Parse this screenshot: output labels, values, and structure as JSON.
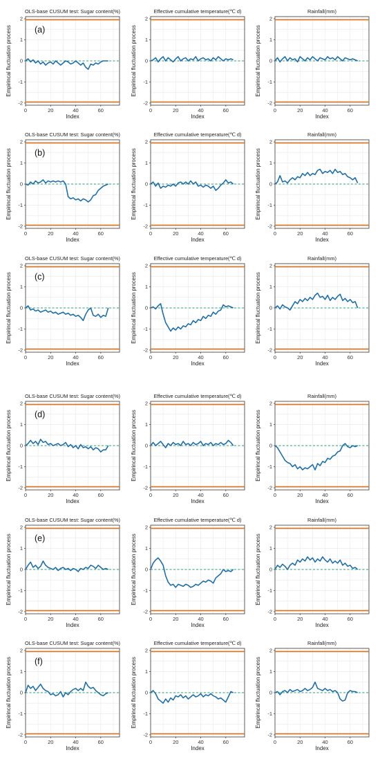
{
  "figure": {
    "ylabel": "Empirincal fluctuation process",
    "xlabel": "Index",
    "colors": {
      "series": "#1f6fa6",
      "boundary": "#d9731b",
      "zero_line": "#2a9d7a",
      "grid": "#ececec",
      "frame": "#333333"
    }
  },
  "chart_data": [
    {
      "panel": "a",
      "type": "line",
      "title": "OLS-base CUSUM test: Sugar content(%)",
      "xlabel": "Index",
      "ylabel": "Empirincal fluctuation process",
      "xlim": [
        0,
        75
      ],
      "ylim": [
        -2.1,
        2.1
      ],
      "yticks": [
        -2,
        -1,
        0,
        1,
        2
      ],
      "xticks": [
        0,
        20,
        40,
        60
      ],
      "boundaries": [
        1.95,
        -1.95
      ],
      "label": "(a)",
      "x_step": 2,
      "values": [
        0,
        0.1,
        -0.05,
        0.05,
        -0.1,
        0,
        -0.15,
        -0.05,
        -0.2,
        -0.1,
        -0.05,
        -0.15,
        0,
        -0.1,
        -0.2,
        -0.1,
        0,
        -0.05,
        -0.15,
        -0.1,
        0,
        -0.1,
        -0.2,
        -0.1,
        -0.3,
        -0.4,
        -0.15,
        -0.2,
        -0.1,
        -0.15,
        -0.05,
        0,
        0,
        0
      ]
    },
    {
      "panel": "a2",
      "type": "line",
      "title": "Effective cumulative temperature(℃ d)",
      "xlabel": "Index",
      "ylabel": "Empirincal fluctuation process",
      "xlim": [
        0,
        75
      ],
      "ylim": [
        -2.1,
        2.1
      ],
      "yticks": [
        -2,
        -1,
        0,
        1,
        2
      ],
      "xticks": [
        0,
        20,
        40,
        60
      ],
      "boundaries": [
        1.95,
        -1.95
      ],
      "x_step": 2,
      "values": [
        0,
        0.05,
        0.15,
        -0.05,
        0.1,
        0.2,
        0,
        0.15,
        0.05,
        -0.05,
        0.1,
        0.2,
        0,
        0.1,
        0.15,
        0,
        0.1,
        0.05,
        0.2,
        0,
        0.1,
        0.15,
        0.05,
        0.1,
        0,
        0.15,
        0.05,
        0.2,
        0.1,
        0,
        0.1,
        0.05,
        0.1,
        0.05
      ]
    },
    {
      "panel": "a3",
      "type": "line",
      "title": "Rainfall(mm)",
      "xlabel": "Index",
      "ylabel": "Empirincal fluctuation process",
      "xlim": [
        0,
        75
      ],
      "ylim": [
        -2.1,
        2.1
      ],
      "yticks": [
        -2,
        -1,
        0,
        1,
        2
      ],
      "xticks": [
        0,
        20,
        40,
        60
      ],
      "boundaries": [
        1.95,
        -1.95
      ],
      "x_step": 2,
      "values": [
        0,
        0.15,
        -0.05,
        0.1,
        0.2,
        0,
        0.15,
        0.05,
        0.1,
        -0.05,
        0.2,
        0.1,
        0,
        0.15,
        0.05,
        0.2,
        0.1,
        0,
        0.15,
        0.1,
        0.05,
        0.2,
        0.1,
        0.15,
        0.05,
        0.2,
        0.1,
        0,
        0.15,
        0.1,
        0.05,
        0.1,
        0.05,
        0
      ]
    },
    {
      "panel": "b",
      "type": "line",
      "title": "OLS-base CUSUM test: Sugar content(%)",
      "xlabel": "Index",
      "ylabel": "Empirincal fluctuation process",
      "xlim": [
        0,
        75
      ],
      "ylim": [
        -2.1,
        2.1
      ],
      "yticks": [
        -2,
        -1,
        0,
        1,
        2
      ],
      "xticks": [
        0,
        20,
        40,
        60
      ],
      "boundaries": [
        1.95,
        -1.95
      ],
      "label": "(b)",
      "x_step": 2,
      "values": [
        0,
        -0.05,
        0.1,
        0,
        0.15,
        0.05,
        0.1,
        0.2,
        0.05,
        0.15,
        0.1,
        0.15,
        0.1,
        0.15,
        0.1,
        0.15,
        0,
        -0.6,
        -0.7,
        -0.65,
        -0.75,
        -0.7,
        -0.8,
        -0.7,
        -0.75,
        -0.85,
        -0.75,
        -0.55,
        -0.5,
        -0.3,
        -0.2,
        -0.1,
        -0.05,
        0
      ]
    },
    {
      "panel": "b2",
      "type": "line",
      "title": "Effective cumulative temperature(℃ d)",
      "xlabel": "Index",
      "ylabel": "Empirincal fluctuation process",
      "xlim": [
        0,
        75
      ],
      "ylim": [
        -2.1,
        2.1
      ],
      "yticks": [
        -2,
        -1,
        0,
        1,
        2
      ],
      "xticks": [
        0,
        20,
        40,
        60
      ],
      "boundaries": [
        1.95,
        -1.95
      ],
      "x_step": 2,
      "values": [
        0,
        0.1,
        -0.1,
        0.05,
        -0.2,
        -0.1,
        -0.15,
        -0.05,
        -0.1,
        0,
        -0.1,
        0.05,
        0.1,
        0,
        0.1,
        0,
        0.15,
        0,
        0.1,
        -0.1,
        -0.05,
        -0.15,
        -0.05,
        -0.1,
        -0.2,
        -0.1,
        -0.3,
        -0.2,
        -0.05,
        0.05,
        0.2,
        0.05,
        0.1,
        0
      ]
    },
    {
      "panel": "b3",
      "type": "line",
      "title": "Rainfall(mm)",
      "xlabel": "Index",
      "ylabel": "Empirincal fluctuation process",
      "xlim": [
        0,
        75
      ],
      "ylim": [
        -2.1,
        2.1
      ],
      "yticks": [
        -2,
        -1,
        0,
        1,
        2
      ],
      "xticks": [
        0,
        20,
        40,
        60
      ],
      "boundaries": [
        1.95,
        -1.95
      ],
      "x_step": 2,
      "values": [
        0,
        0.1,
        0.4,
        0.1,
        0.15,
        0.05,
        0.2,
        0.3,
        0.2,
        0.35,
        0.3,
        0.5,
        0.4,
        0.55,
        0.4,
        0.5,
        0.45,
        0.65,
        0.7,
        0.5,
        0.6,
        0.55,
        0.65,
        0.5,
        0.7,
        0.55,
        0.6,
        0.45,
        0.5,
        0.35,
        0.3,
        0.2,
        0.3,
        0.05
      ]
    },
    {
      "panel": "c",
      "type": "line",
      "title": "OLS-base CUSUM test: Sugar content(%)",
      "xlabel": "Index",
      "ylabel": "Empirincal fluctuation process",
      "xlim": [
        0,
        75
      ],
      "ylim": [
        -2.1,
        2.1
      ],
      "yticks": [
        -2,
        -1,
        0,
        1,
        2
      ],
      "xticks": [
        0,
        20,
        40,
        60
      ],
      "boundaries": [
        1.95,
        -1.95
      ],
      "label": "(c)",
      "x_step": 2,
      "values": [
        0,
        0.1,
        -0.1,
        -0.05,
        -0.15,
        -0.1,
        -0.2,
        -0.15,
        -0.1,
        -0.2,
        -0.15,
        -0.25,
        -0.2,
        -0.3,
        -0.25,
        -0.2,
        -0.3,
        -0.25,
        -0.35,
        -0.3,
        -0.4,
        -0.35,
        -0.45,
        -0.6,
        -0.3,
        -0.1,
        0,
        -0.35,
        -0.4,
        -0.3,
        -0.45,
        -0.35,
        -0.4,
        0
      ]
    },
    {
      "panel": "c2",
      "type": "line",
      "title": "Effective cumulative temperature(℃ d)",
      "xlabel": "Index",
      "ylabel": "Empirincal fluctuation process",
      "xlim": [
        0,
        75
      ],
      "ylim": [
        -2.1,
        2.1
      ],
      "yticks": [
        -2,
        -1,
        0,
        1,
        2
      ],
      "xticks": [
        0,
        20,
        40,
        60
      ],
      "boundaries": [
        1.95,
        -1.95
      ],
      "x_step": 2,
      "values": [
        0,
        0.05,
        -0.05,
        0.1,
        0.2,
        -0.3,
        -0.7,
        -0.9,
        -1.1,
        -0.95,
        -1.05,
        -0.9,
        -1.0,
        -0.85,
        -0.9,
        -0.75,
        -0.8,
        -0.6,
        -0.7,
        -0.55,
        -0.6,
        -0.4,
        -0.5,
        -0.35,
        -0.4,
        -0.2,
        -0.3,
        -0.15,
        -0.1,
        0.15,
        0.05,
        0.1,
        0.05,
        0
      ]
    },
    {
      "panel": "c3",
      "type": "line",
      "title": "Rainfall(mm)",
      "xlabel": "Index",
      "ylabel": "Empirincal fluctuation process",
      "xlim": [
        0,
        75
      ],
      "ylim": [
        -2.1,
        2.1
      ],
      "yticks": [
        -2,
        -1,
        0,
        1,
        2
      ],
      "xticks": [
        0,
        20,
        40,
        60
      ],
      "boundaries": [
        1.95,
        -1.95
      ],
      "x_step": 2,
      "values": [
        0,
        0.1,
        -0.05,
        0.15,
        0.05,
        0,
        -0.1,
        0.1,
        0.3,
        0.2,
        0.4,
        0.3,
        0.45,
        0.35,
        0.5,
        0.4,
        0.6,
        0.7,
        0.5,
        0.55,
        0.4,
        0.6,
        0.35,
        0.5,
        0.4,
        0.55,
        0.65,
        0.35,
        0.45,
        0.3,
        0.4,
        0.25,
        0.3,
        0
      ]
    },
    {
      "panel": "d",
      "type": "line",
      "title": "OLS-base CUSUM test: Sugar content(%)",
      "xlabel": "Index",
      "ylabel": "Empirincal fluctuation process",
      "xlim": [
        0,
        75
      ],
      "ylim": [
        -2.1,
        2.1
      ],
      "yticks": [
        -2,
        -1,
        0,
        1,
        2
      ],
      "xticks": [
        0,
        20,
        40,
        60
      ],
      "boundaries": [
        1.95,
        -1.95
      ],
      "label": "(d)",
      "x_step": 2,
      "values": [
        0,
        0.1,
        0.25,
        0.1,
        0.2,
        0.05,
        0.3,
        0.15,
        0.2,
        0.05,
        0.1,
        0,
        0.05,
        0.1,
        0,
        0.05,
        0.15,
        -0.05,
        0.05,
        -0.1,
        0,
        -0.15,
        0.05,
        -0.1,
        -0.05,
        -0.15,
        -0.05,
        -0.2,
        -0.1,
        -0.15,
        -0.3,
        -0.2,
        -0.2,
        0
      ]
    },
    {
      "panel": "d2",
      "type": "line",
      "title": "Effective cumulative temperature(℃ d)",
      "xlabel": "Index",
      "ylabel": "Empirincal fluctuation process",
      "xlim": [
        0,
        75
      ],
      "ylim": [
        -2.1,
        2.1
      ],
      "yticks": [
        -2,
        -1,
        0,
        1,
        2
      ],
      "xticks": [
        0,
        20,
        40,
        60
      ],
      "boundaries": [
        1.95,
        -1.95
      ],
      "x_step": 2,
      "values": [
        0,
        0.15,
        0,
        0.1,
        0.2,
        0.05,
        -0.1,
        0.1,
        0,
        0.15,
        0.05,
        0.1,
        0,
        0.2,
        0.05,
        0.1,
        0,
        0.15,
        0.05,
        0.1,
        0.2,
        0,
        0.1,
        0.05,
        0.15,
        0,
        0.1,
        0.05,
        0.15,
        0.05,
        0.1,
        0.25,
        0.15,
        0
      ]
    },
    {
      "panel": "d3",
      "type": "line",
      "title": "Rainfall(mm)",
      "xlabel": "Index",
      "ylabel": "Empirincal fluctuation process",
      "xlim": [
        0,
        75
      ],
      "ylim": [
        -2.1,
        2.1
      ],
      "yticks": [
        -2,
        -1,
        0,
        1,
        2
      ],
      "xticks": [
        0,
        20,
        40,
        60
      ],
      "boundaries": [
        1.95,
        -1.95
      ],
      "x_step": 2,
      "values": [
        0,
        -0.1,
        -0.3,
        -0.5,
        -0.7,
        -0.8,
        -0.85,
        -1.0,
        -0.9,
        -1.1,
        -1.0,
        -1.15,
        -1.05,
        -1.1,
        -1.0,
        -0.9,
        -1.15,
        -0.85,
        -0.95,
        -0.75,
        -0.8,
        -0.6,
        -0.65,
        -0.5,
        -0.45,
        -0.3,
        -0.25,
        0,
        0.1,
        -0.05,
        -0.1,
        0,
        -0.05,
        0
      ]
    },
    {
      "panel": "e",
      "type": "line",
      "title": "OLS-base CUSUM test: Sugar content(%)",
      "xlabel": "Index",
      "ylabel": "Empirincal fluctuation process",
      "xlim": [
        0,
        75
      ],
      "ylim": [
        -2.1,
        2.1
      ],
      "yticks": [
        -2,
        -1,
        0,
        1,
        2
      ],
      "xticks": [
        0,
        20,
        40,
        60
      ],
      "boundaries": [
        1.95,
        -1.95
      ],
      "label": "(e)",
      "x_step": 2,
      "values": [
        0,
        0.2,
        0.35,
        0.1,
        0.2,
        0.05,
        0.15,
        0.4,
        0.2,
        0.1,
        0.05,
        0,
        0.1,
        -0.05,
        0.05,
        0.1,
        0,
        0.05,
        -0.05,
        0.05,
        0,
        -0.1,
        0.05,
        0,
        0.1,
        0.05,
        0.2,
        0.15,
        0.05,
        0.2,
        0.1,
        0,
        0.05,
        0
      ]
    },
    {
      "panel": "e2",
      "type": "line",
      "title": "Effective cumulative temperature(℃ d)",
      "xlabel": "Index",
      "ylabel": "Empirincal fluctuation process",
      "xlim": [
        0,
        75
      ],
      "ylim": [
        -2.1,
        2.1
      ],
      "yticks": [
        -2,
        -1,
        0,
        1,
        2
      ],
      "xticks": [
        0,
        20,
        40,
        60
      ],
      "boundaries": [
        1.95,
        -1.95
      ],
      "x_step": 2,
      "values": [
        0,
        0.3,
        0.45,
        0.55,
        0.4,
        0.2,
        -0.3,
        -0.6,
        -0.75,
        -0.7,
        -0.85,
        -0.7,
        -0.75,
        -0.8,
        -0.7,
        -0.75,
        -0.85,
        -0.8,
        -0.7,
        -0.75,
        -0.65,
        -0.55,
        -0.6,
        -0.5,
        -0.55,
        -0.65,
        -0.4,
        -0.3,
        -0.2,
        0,
        -0.1,
        -0.05,
        -0.1,
        0
      ]
    },
    {
      "panel": "e3",
      "type": "line",
      "title": "Rainfall(mm)",
      "xlabel": "Index",
      "ylabel": "Empirincal fluctuation process",
      "xlim": [
        0,
        75
      ],
      "ylim": [
        -2.1,
        2.1
      ],
      "yticks": [
        -2,
        -1,
        0,
        1,
        2
      ],
      "xticks": [
        0,
        20,
        40,
        60
      ],
      "boundaries": [
        1.95,
        -1.95
      ],
      "x_step": 2,
      "values": [
        0,
        0.2,
        0.1,
        0.25,
        0.15,
        0,
        0.2,
        0.3,
        0.2,
        0.45,
        0.35,
        0.5,
        0.4,
        0.6,
        0.45,
        0.55,
        0.35,
        0.5,
        0.4,
        0.6,
        0.45,
        0.35,
        0.5,
        0.3,
        0.4,
        0.3,
        0.45,
        0.2,
        0.3,
        0.15,
        0.2,
        0.05,
        0.1,
        0
      ]
    },
    {
      "panel": "f",
      "type": "line",
      "title": "OLS-base CUSUM test: Sugar content(%)",
      "xlabel": "Index",
      "ylabel": "Empirincal fluctuation process",
      "xlim": [
        0,
        75
      ],
      "ylim": [
        -2.1,
        2.1
      ],
      "yticks": [
        -2,
        -1,
        0,
        1,
        2
      ],
      "xticks": [
        0,
        20,
        40,
        60
      ],
      "boundaries": [
        1.95,
        -1.95
      ],
      "label": "(f)",
      "x_step": 2,
      "values": [
        0,
        0.35,
        0.2,
        0.3,
        0.1,
        0.25,
        0.4,
        0.2,
        0.1,
        0.05,
        -0.1,
        -0.05,
        -0.15,
        -0.1,
        0.05,
        -0.2,
        0,
        -0.1,
        0.05,
        0.15,
        0.2,
        0.1,
        0.2,
        0.1,
        0.5,
        0.3,
        0.2,
        0.25,
        0.1,
        0,
        -0.1,
        -0.15,
        -0.05,
        0
      ]
    },
    {
      "panel": "f2",
      "type": "line",
      "title": "Effective cumulative temperature(℃ d)",
      "xlabel": "Index",
      "ylabel": "Empirincal fluctuation process",
      "xlim": [
        0,
        75
      ],
      "ylim": [
        -2.1,
        2.1
      ],
      "yticks": [
        -2,
        -1,
        0,
        1,
        2
      ],
      "xticks": [
        0,
        20,
        40,
        60
      ],
      "boundaries": [
        1.95,
        -1.95
      ],
      "x_step": 2,
      "values": [
        0,
        0.1,
        -0.05,
        -0.3,
        -0.4,
        -0.5,
        -0.3,
        -0.45,
        -0.25,
        -0.35,
        -0.15,
        -0.2,
        -0.1,
        -0.25,
        -0.15,
        -0.3,
        -0.2,
        -0.1,
        -0.2,
        -0.15,
        -0.05,
        -0.2,
        -0.1,
        -0.15,
        -0.05,
        -0.15,
        -0.2,
        -0.3,
        -0.25,
        -0.35,
        -0.45,
        -0.2,
        0.05,
        0
      ]
    },
    {
      "panel": "f3",
      "type": "line",
      "title": "Rainfall(mm)",
      "xlabel": "Index",
      "ylabel": "Empirincal fluctuation process",
      "xlim": [
        0,
        75
      ],
      "ylim": [
        -2.1,
        2.1
      ],
      "yticks": [
        -2,
        -1,
        0,
        1,
        2
      ],
      "xticks": [
        0,
        20,
        40,
        60
      ],
      "boundaries": [
        1.95,
        -1.95
      ],
      "x_step": 2,
      "values": [
        0,
        0.05,
        -0.1,
        0.05,
        0.1,
        0,
        0.15,
        0.05,
        0.1,
        0.15,
        0.05,
        0.1,
        0.2,
        0.1,
        0.15,
        0.25,
        0.5,
        0.2,
        0.15,
        0.1,
        0.2,
        0.1,
        0.15,
        0.05,
        0.1,
        0,
        -0.3,
        -0.4,
        -0.35,
        0,
        0.1,
        0.05,
        0.05,
        0
      ]
    }
  ]
}
